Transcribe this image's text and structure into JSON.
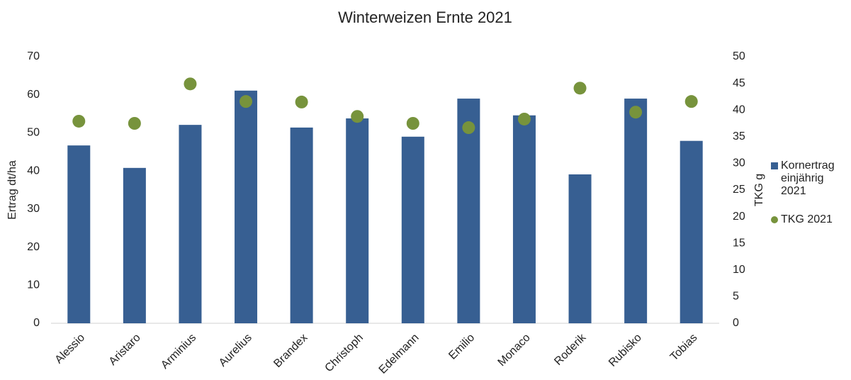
{
  "chart_data": {
    "type": "bar_dot",
    "title": "Winterweizen Ernte 2021",
    "y_label": "Ertrag dt/ha",
    "y2_label": "TKG g",
    "categories": [
      "Alessio",
      "Aristaro",
      "Arminius",
      "Aurelius",
      "Brandex",
      "Christoph",
      "Edelmann",
      "Emilio",
      "Monaco",
      "Roderik",
      "Rubisko",
      "Tobias"
    ],
    "series": [
      {
        "name": "Kornertrag einjährig 2021",
        "color": "#375f92",
        "values": [
          46.7,
          40.8,
          52.1,
          61.1,
          51.4,
          53.8,
          49.0,
          59.0,
          54.6,
          39.1,
          59.0,
          47.9
        ]
      },
      {
        "name": "TKG 2021",
        "color": "#77933c",
        "axis": "y2",
        "values": [
          37.9,
          37.5,
          44.9,
          41.6,
          41.5,
          38.8,
          37.5,
          36.7,
          38.3,
          44.1,
          39.6,
          41.6
        ]
      }
    ],
    "ylim": [
      0,
      70
    ],
    "yticks": [
      0,
      10,
      20,
      30,
      40,
      50,
      60,
      70
    ],
    "y2lim": [
      0,
      50
    ],
    "y2ticks": [
      0,
      5,
      10,
      15,
      20,
      25,
      30,
      35,
      40,
      45,
      50
    ],
    "legend": "right"
  }
}
